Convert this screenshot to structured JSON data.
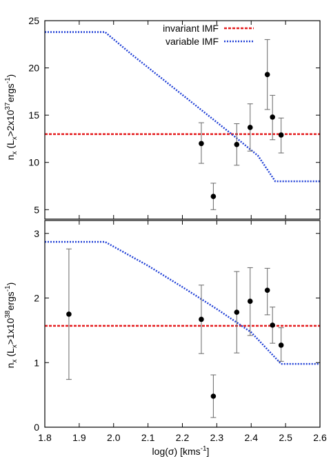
{
  "chart_data": [
    {
      "type": "scatter",
      "panel": "top",
      "ylabel": {
        "main": "n",
        "sub": "x",
        "rest": " (L",
        "sub2": "x",
        "rest2": ">2x10",
        "sup": "37",
        "rest3": "ergs",
        "sup2": "-1",
        "rest4": ")"
      },
      "xlim": [
        1.8,
        2.6
      ],
      "ylim": [
        4,
        25
      ],
      "yticks": [
        5,
        10,
        15,
        20,
        25
      ],
      "legend": {
        "placement": "top-right",
        "entries": [
          {
            "label": "invariant IMF",
            "color": "#e41a1c",
            "style": "dashed"
          },
          {
            "label": "variable IMF",
            "color": "#1f3fd6",
            "style": "dotted"
          }
        ]
      },
      "series": [
        {
          "kind": "hline",
          "value": 13.0,
          "color": "#e41a1c"
        },
        {
          "kind": "line",
          "color": "#1f3fd6",
          "x": [
            1.8,
            1.975,
            2.05,
            2.15,
            2.25,
            2.35,
            2.42,
            2.47,
            2.6
          ],
          "y": [
            23.8,
            23.8,
            21.5,
            18.6,
            15.7,
            12.8,
            10.7,
            8.0,
            8.0
          ]
        },
        {
          "kind": "points",
          "x": [
            2.255,
            2.29,
            2.358,
            2.397,
            2.447,
            2.462,
            2.487
          ],
          "y": [
            12.0,
            6.4,
            11.9,
            13.7,
            19.3,
            14.8,
            12.9
          ],
          "err_lo": [
            2.1,
            1.4,
            2.2,
            2.5,
            3.7,
            2.4,
            1.9
          ],
          "err_hi": [
            2.2,
            1.4,
            2.2,
            2.5,
            3.7,
            2.3,
            1.8
          ]
        }
      ]
    },
    {
      "type": "scatter",
      "panel": "bottom",
      "xlabel": {
        "main": "log(σ) [kms",
        "sup": "-1",
        "rest": "]"
      },
      "ylabel": {
        "main": "n",
        "sub": "x",
        "rest": " (L",
        "sub2": "x",
        "rest2": ">1x10",
        "sup": "38",
        "rest3": "ergs",
        "sup2": "-1",
        "rest4": ")"
      },
      "xlim": [
        1.8,
        2.6
      ],
      "ylim": [
        0,
        3.2
      ],
      "xticks": [
        "1.8",
        "1.9",
        "2.0",
        "2.1",
        "2.2",
        "2.3",
        "2.4",
        "2.5",
        "2.6"
      ],
      "yticks": [
        "0",
        "1",
        "2",
        "3"
      ],
      "series": [
        {
          "kind": "hline",
          "value": 1.57,
          "color": "#e41a1c"
        },
        {
          "kind": "line",
          "color": "#1f3fd6",
          "x": [
            1.8,
            1.975,
            2.1,
            2.2,
            2.3,
            2.4,
            2.487,
            2.6
          ],
          "y": [
            2.87,
            2.87,
            2.5,
            2.17,
            1.83,
            1.47,
            0.98,
            0.98
          ]
        },
        {
          "kind": "points",
          "x": [
            1.87,
            2.255,
            2.29,
            2.358,
            2.397,
            2.447,
            2.462,
            2.487
          ],
          "y": [
            1.75,
            1.67,
            0.48,
            1.78,
            1.95,
            2.12,
            1.58,
            1.27
          ],
          "err_lo": [
            1.01,
            0.53,
            0.33,
            0.63,
            0.53,
            0.38,
            0.28,
            0.25
          ],
          "err_hi": [
            1.01,
            0.53,
            0.33,
            0.63,
            0.52,
            0.34,
            0.28,
            0.27
          ]
        }
      ]
    }
  ]
}
